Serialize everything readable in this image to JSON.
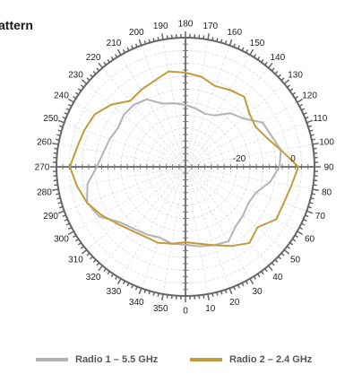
{
  "chart_data": {
    "type": "polar-line",
    "title": "attern",
    "angle_tick_labels": [
      "0",
      "10",
      "20",
      "30",
      "40",
      "50",
      "60",
      "70",
      "80",
      "90",
      "100",
      "110",
      "120",
      "130",
      "140",
      "150",
      "160",
      "170",
      "180",
      "190",
      "200",
      "210",
      "220",
      "230",
      "240",
      "250",
      "260",
      "270",
      "280",
      "290",
      "300",
      "310",
      "320",
      "330",
      "340",
      "350"
    ],
    "radial_tick_labels": [
      {
        "value": -20,
        "label": "-20"
      },
      {
        "value": 0,
        "label": "0"
      }
    ],
    "r_range": [
      -40,
      8
    ],
    "angle_direction": "counterclockwise",
    "zero_angle_at": "bottom",
    "grid": true,
    "legend_position": "bottom",
    "series": [
      {
        "name": "Radio 1 – 5.5 GHz",
        "color": "#b3b3b3",
        "angles": [
          0,
          10,
          20,
          30,
          40,
          50,
          60,
          70,
          80,
          90,
          100,
          110,
          120,
          130,
          140,
          150,
          160,
          170,
          180,
          190,
          200,
          210,
          220,
          230,
          240,
          250,
          260,
          270,
          280,
          290,
          300,
          310,
          320,
          330,
          340,
          350
        ],
        "values": [
          -11,
          -10,
          -9,
          -8,
          -11,
          -12,
          -13,
          -12,
          -8,
          -5,
          -4,
          -6,
          -7,
          -12,
          -14,
          -18,
          -19,
          -18,
          -17,
          -16,
          -15,
          -11,
          -10,
          -10,
          -11,
          -10,
          -9,
          -7,
          -3,
          -1,
          -3,
          -8,
          -10,
          -11,
          -12,
          -11
        ]
      },
      {
        "name": "Radio 2 – 2.4 GHz",
        "color": "#c49a3c",
        "angles": [
          0,
          10,
          20,
          30,
          40,
          50,
          60,
          70,
          80,
          90,
          100,
          110,
          120,
          130,
          140,
          150,
          160,
          170,
          180,
          190,
          200,
          210,
          220,
          230,
          240,
          250,
          260,
          270,
          280,
          290,
          300,
          310,
          320,
          330,
          340,
          350
        ],
        "values": [
          -12,
          -11,
          -9,
          -6,
          -3,
          -5,
          -1,
          -1,
          0,
          2,
          -4,
          -8,
          -10,
          -9,
          -6,
          -7,
          -8,
          -6,
          -5,
          -4,
          -6,
          -7,
          -8,
          -4,
          -1,
          0,
          1,
          3,
          1,
          -1,
          -4,
          -7,
          -9,
          -10,
          -10,
          -11
        ]
      }
    ]
  }
}
